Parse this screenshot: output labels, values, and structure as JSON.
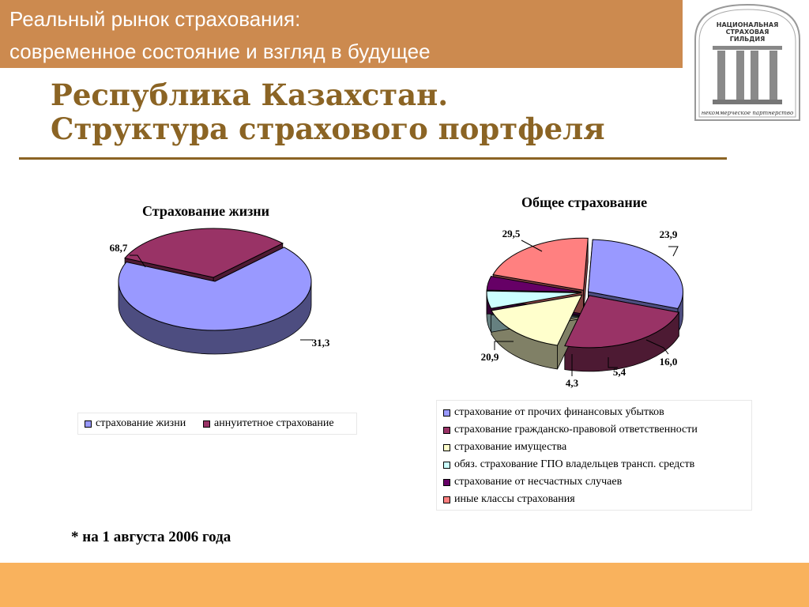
{
  "header": {
    "line1": "Реальный рынок страхования:",
    "line2": "современное состояние и взгляд в будущее"
  },
  "logo": {
    "text_lines": [
      "НАЦИОНАЛЬНАЯ",
      "СТРАХОВАЯ",
      "ГИЛЬДИЯ"
    ],
    "subtitle": "некоммерческое партнерство"
  },
  "title": {
    "line1": "Республика Казахстан.",
    "line2": "Структура страхового портфеля"
  },
  "note": "* на 1 августа 2006 года",
  "colors": {
    "banner": "#cc8a4f",
    "title": "#8b6424",
    "footer": "#f9b25d"
  },
  "chart_data": [
    {
      "type": "pie",
      "style": "3d-exploded",
      "title": "Страхование жизни",
      "categories": [
        "страхование жизни",
        "аннуитетное страхование"
      ],
      "values": [
        68.7,
        31.3
      ],
      "value_labels": [
        "68,7",
        "31,3"
      ],
      "colors": [
        "#9999ff",
        "#993366"
      ],
      "legend_position": "bottom"
    },
    {
      "type": "pie",
      "style": "3d-exploded",
      "title": "Общее страхование",
      "categories": [
        "страхование от прочих финансовых убытков",
        "страхование гражданско-правовой ответственности",
        "страхование имущества",
        "обяз. страхование ГПО владельцев трансп. средств",
        "страхование от несчастных случаев",
        "иные классы страхования"
      ],
      "values": [
        29.5,
        23.9,
        16.0,
        5.4,
        4.3,
        20.9
      ],
      "value_labels": [
        "29,5",
        "23,9",
        "16,0",
        "5,4",
        "4,3",
        "20,9"
      ],
      "colors": [
        "#9999ff",
        "#993366",
        "#ffffcc",
        "#ccffff",
        "#660066",
        "#ff8080"
      ],
      "legend_position": "bottom"
    }
  ]
}
